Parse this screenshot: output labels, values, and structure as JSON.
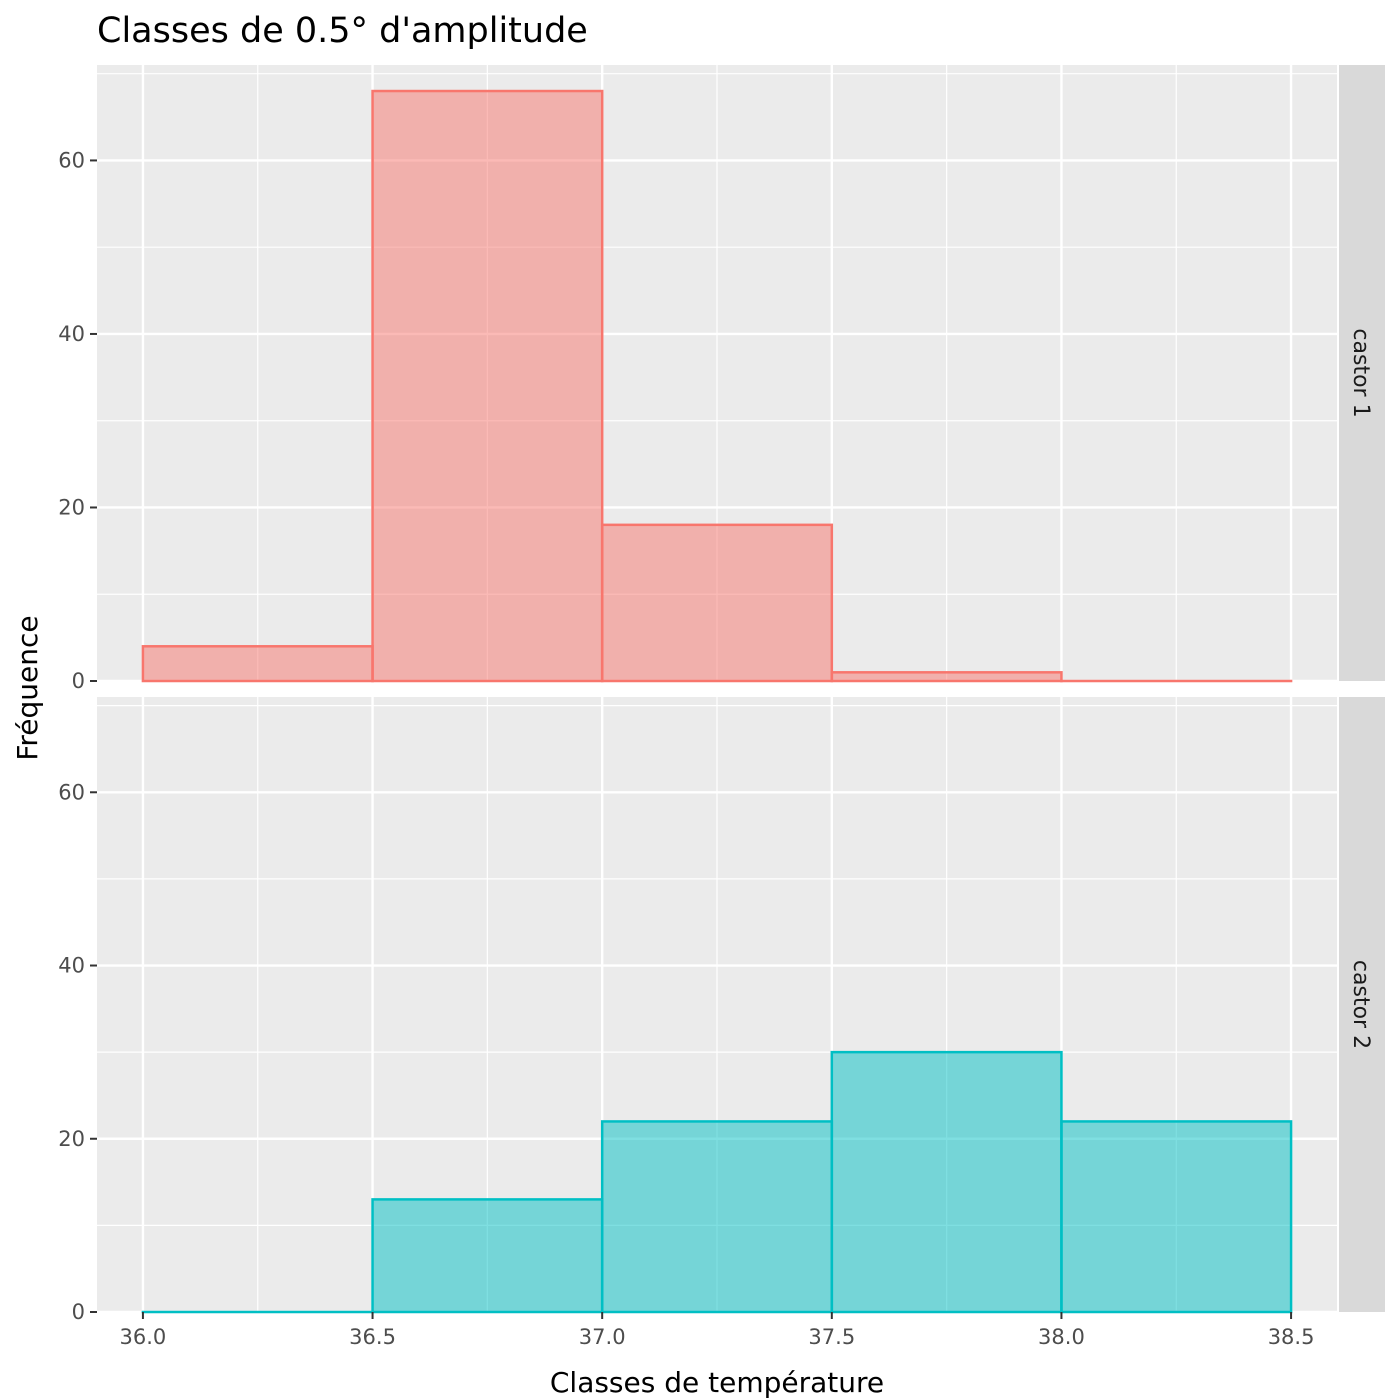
{
  "chart_data": {
    "type": "bar",
    "title": "Classes de 0.5° d'amplitude",
    "xlabel": "Classes de température",
    "ylabel": "Fréquence",
    "x_ticks": [
      "36.0",
      "36.5",
      "37.0",
      "37.5",
      "38.0",
      "38.5"
    ],
    "y_ticks": [
      "0",
      "20",
      "40",
      "60"
    ],
    "bin_edges": [
      36.0,
      36.5,
      37.0,
      37.5,
      38.0,
      38.5
    ],
    "xlim": [
      35.9,
      38.6
    ],
    "ylim": [
      0,
      71
    ],
    "grid": true,
    "legend": "none",
    "facets": [
      {
        "strip": "castor 1",
        "color": "#F8766D",
        "fill": "#F8766D",
        "values": [
          4,
          68,
          18,
          1,
          0
        ]
      },
      {
        "strip": "castor 2",
        "color": "#00BFC4",
        "fill": "#00BFC4",
        "values": [
          0,
          13,
          22,
          30,
          22
        ]
      }
    ]
  },
  "colors": {
    "panel_background": "#EBEBEB",
    "grid_line": "#FFFFFF",
    "strip_background": "#D9D9D9",
    "tick_color": "#333333"
  }
}
